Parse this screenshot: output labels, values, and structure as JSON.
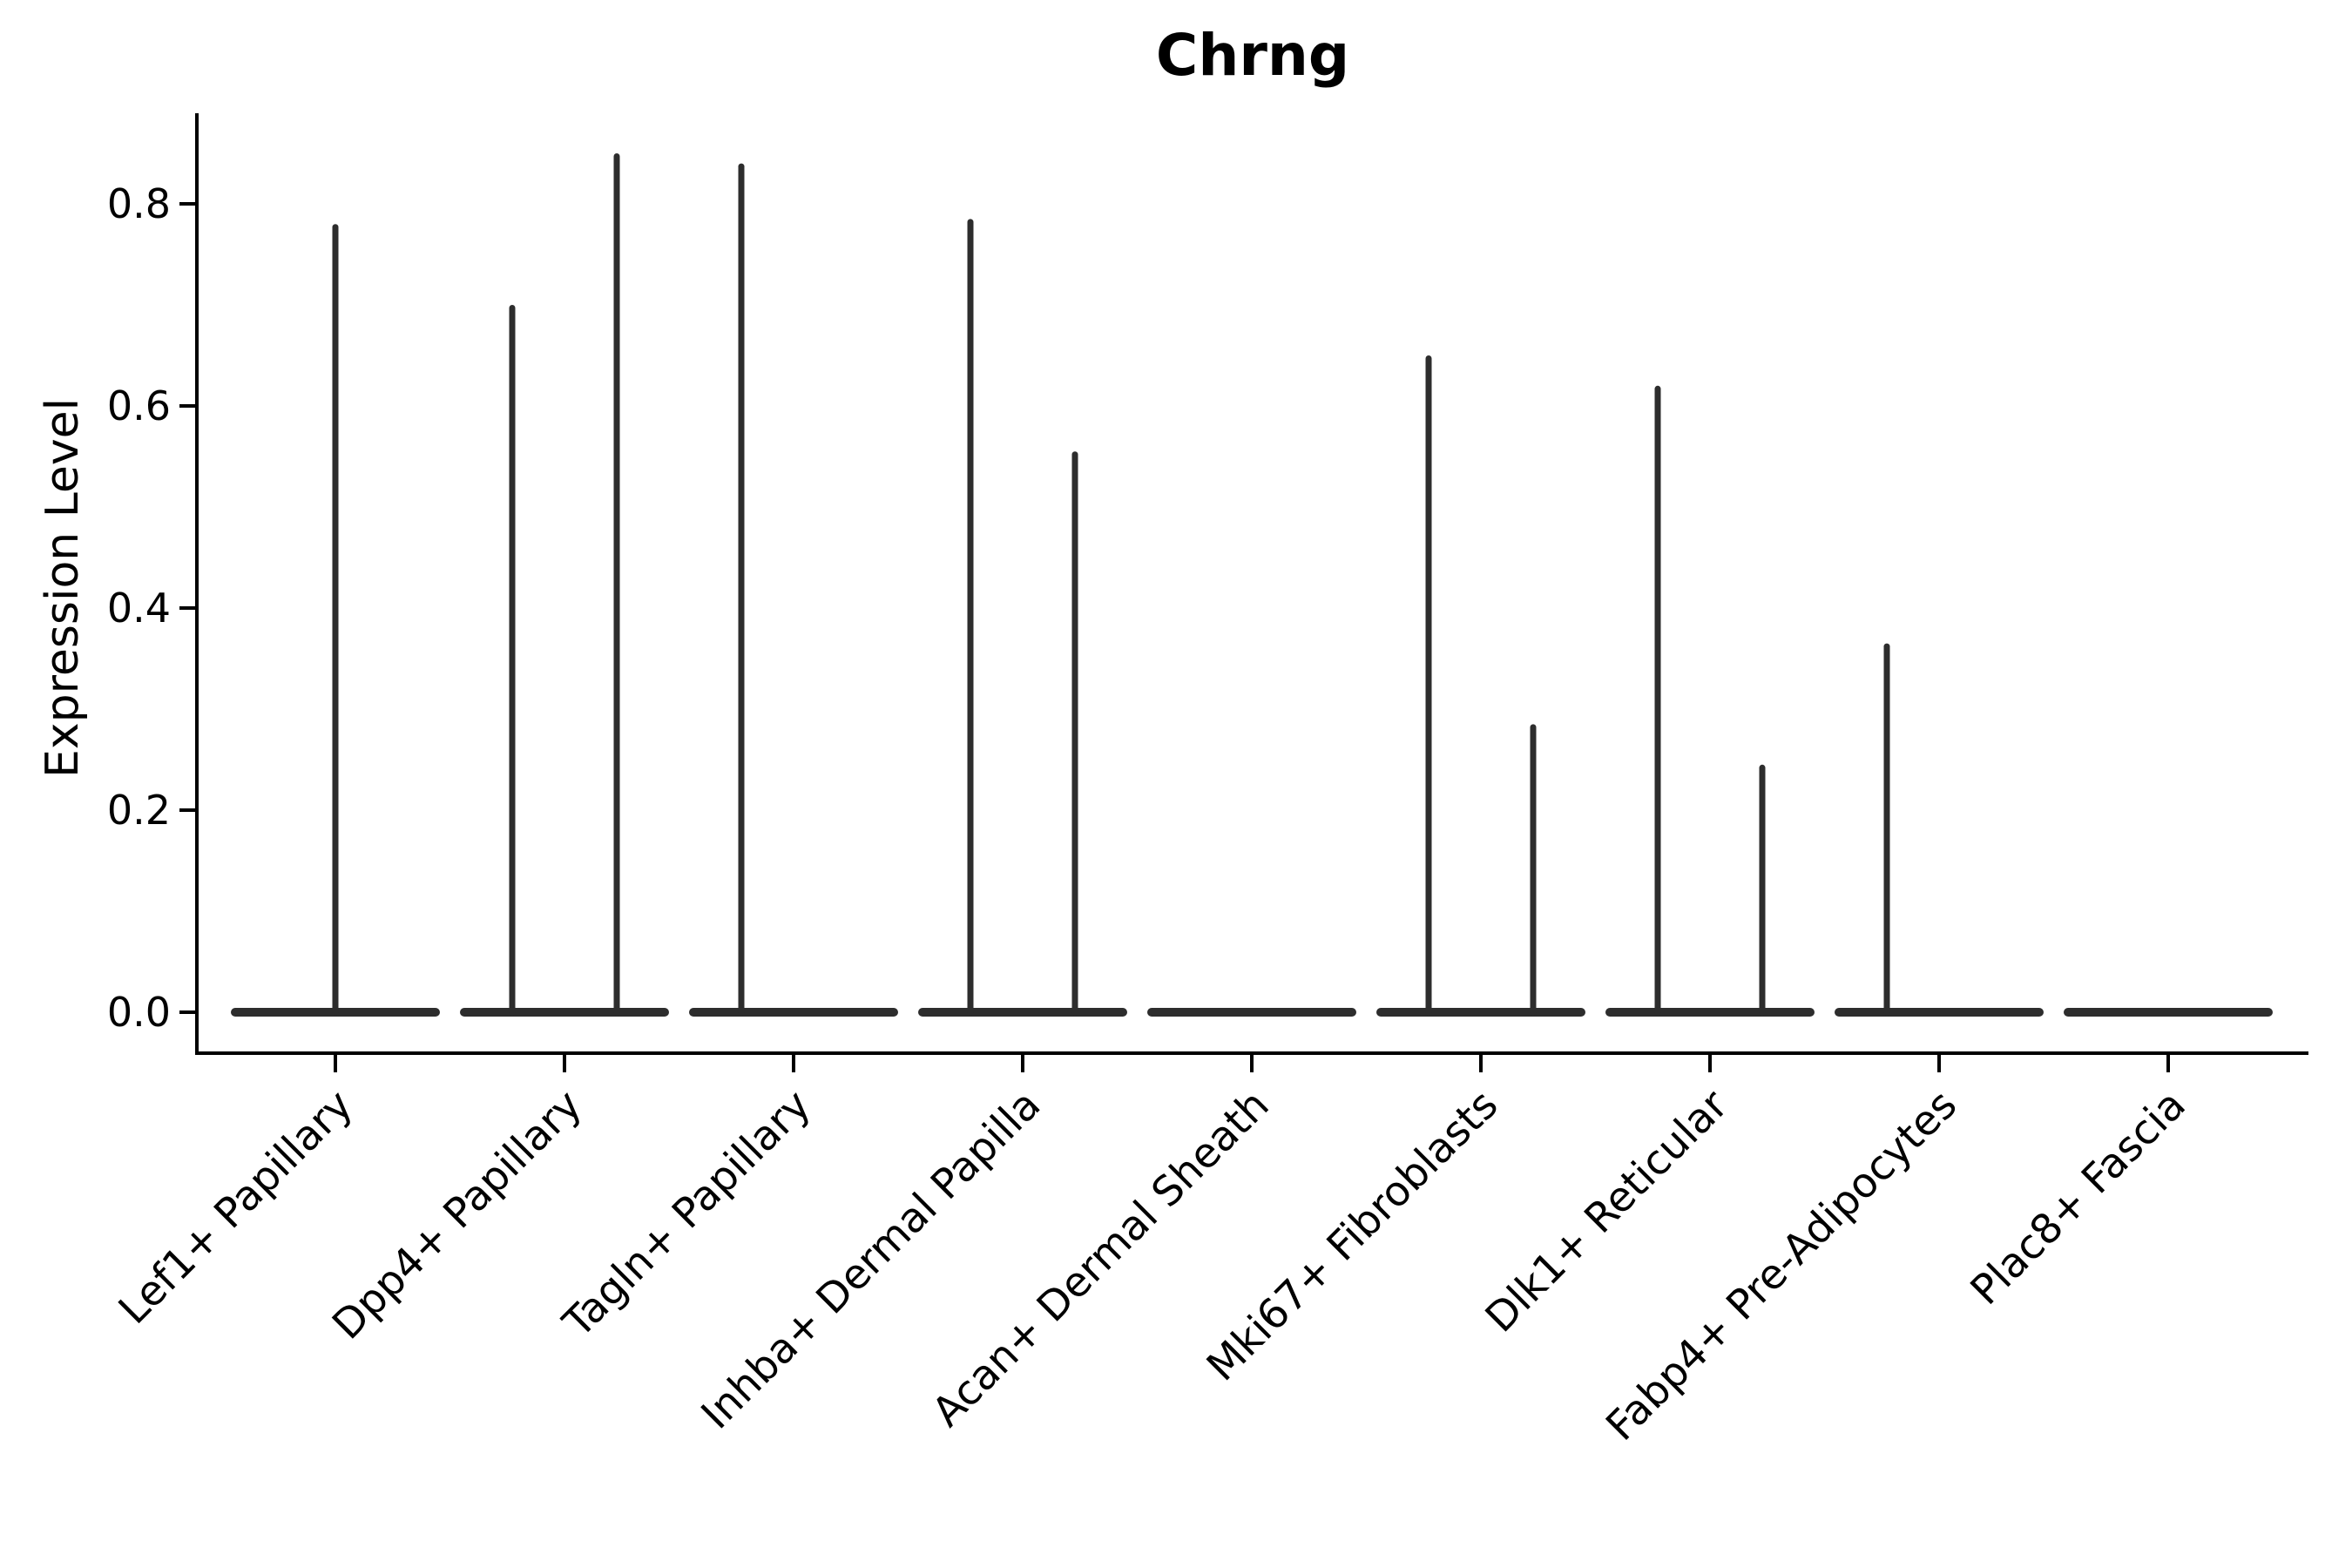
{
  "title": "Chrng",
  "colors": {
    "background": "#ffffff",
    "violin": "#2d2d2d",
    "axis": "#000000",
    "text": "#000000"
  },
  "chart_data": {
    "type": "violin",
    "title": "Chrng",
    "xlabel": "",
    "ylabel": "Expression Level",
    "ylim": [
      -0.04,
      0.9
    ],
    "yticks": [
      0.0,
      0.2,
      0.4,
      0.6,
      0.8
    ],
    "ytick_labels": [
      "0.0",
      "0.2",
      "0.4",
      "0.6",
      "0.8"
    ],
    "grid": false,
    "legend": "none",
    "baseline_value": 0.0,
    "categories": [
      "Lef1+ Papillary",
      "Dpp4+ Papillary",
      "Tagln+ Papillary",
      "Inhba+ Dermal Papilla",
      "Acan+ Dermal Sheath",
      "Mki67+ Fibroblasts",
      "Dlk1+ Reticular",
      "Fabp4+ Pre-Adipocytes",
      "Plac8+ Fascia"
    ],
    "series": [
      {
        "name": "Lef1+ Papillary",
        "violins": [
          {
            "position": "center",
            "min": 0.0,
            "max": 0.78
          }
        ]
      },
      {
        "name": "Dpp4+ Papillary",
        "violins": [
          {
            "position": "left",
            "min": 0.0,
            "max": 0.7
          },
          {
            "position": "right",
            "min": 0.0,
            "max": 0.85
          }
        ]
      },
      {
        "name": "Tagln+ Papillary",
        "violins": [
          {
            "position": "left",
            "min": 0.0,
            "max": 0.84
          }
        ]
      },
      {
        "name": "Inhba+ Dermal Papilla",
        "violins": [
          {
            "position": "left",
            "min": 0.0,
            "max": 0.785
          },
          {
            "position": "right",
            "min": 0.0,
            "max": 0.555
          }
        ]
      },
      {
        "name": "Acan+ Dermal Sheath",
        "violins": []
      },
      {
        "name": "Mki67+ Fibroblasts",
        "violins": [
          {
            "position": "left",
            "min": 0.0,
            "max": 0.65
          },
          {
            "position": "right",
            "min": 0.0,
            "max": 0.285
          }
        ]
      },
      {
        "name": "Dlk1+ Reticular",
        "violins": [
          {
            "position": "left",
            "min": 0.0,
            "max": 0.62
          },
          {
            "position": "right",
            "min": 0.0,
            "max": 0.245
          }
        ]
      },
      {
        "name": "Fabp4+ Pre-Adipocytes",
        "violins": [
          {
            "position": "left",
            "min": 0.0,
            "max": 0.365
          }
        ]
      },
      {
        "name": "Plac8+ Fascia",
        "violins": []
      }
    ]
  }
}
